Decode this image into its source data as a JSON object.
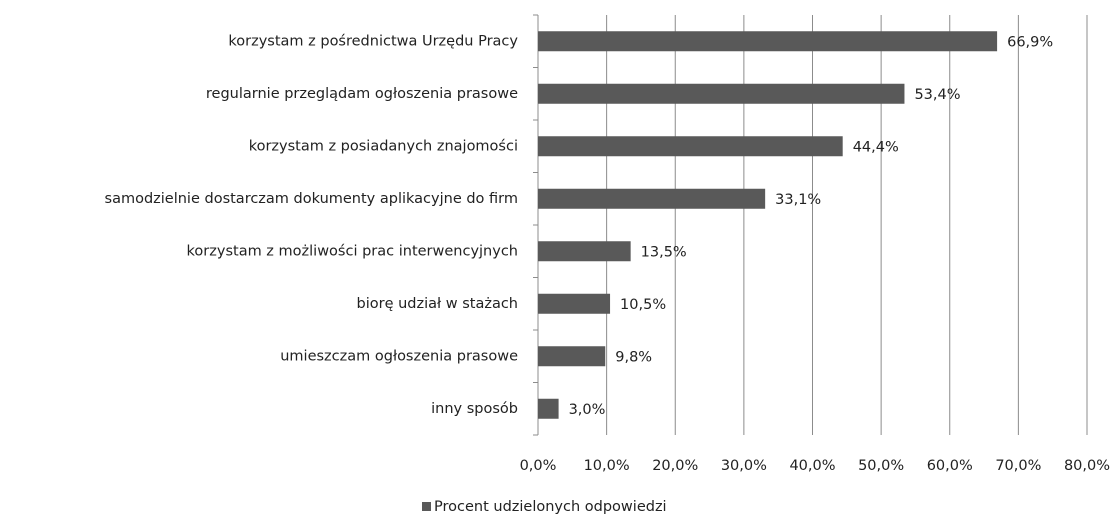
{
  "chart_data": {
    "type": "barh",
    "categories": [
      "korzystam z pośrednictwa Urzędu Pracy",
      "regularnie przeglądam ogłoszenia prasowe",
      "korzystam z posiadanych znajomości",
      "samodzielnie dostarczam dokumenty aplikacyjne do firm",
      "korzystam z możliwości  prac interwencyjnych",
      "biorę udział w stażach",
      "umieszczam ogłoszenia prasowe",
      "inny sposób"
    ],
    "series": [
      {
        "name": "Procent udzielonych odpowiedzi",
        "color": "#595959",
        "values": [
          66.9,
          53.4,
          44.4,
          33.1,
          13.5,
          10.5,
          9.8,
          3.0
        ],
        "value_labels": [
          "66,9%",
          "53,4%",
          "44,4%",
          "33,1%",
          "13,5%",
          "10,5%",
          "9,8%",
          "3,0%"
        ]
      }
    ],
    "xlim": [
      0,
      80
    ],
    "xticks": [
      {
        "value": 0,
        "label": "0,0%"
      },
      {
        "value": 10,
        "label": "10,0%"
      },
      {
        "value": 20,
        "label": "20,0%"
      },
      {
        "value": 30,
        "label": "30,0%"
      },
      {
        "value": 40,
        "label": "40,0%"
      },
      {
        "value": 50,
        "label": "50,0%"
      },
      {
        "value": 60,
        "label": "60,0%"
      },
      {
        "value": 70,
        "label": "70,0%"
      },
      {
        "value": 80,
        "label": "80,0%"
      }
    ],
    "grid": true,
    "legend": "bottom"
  }
}
